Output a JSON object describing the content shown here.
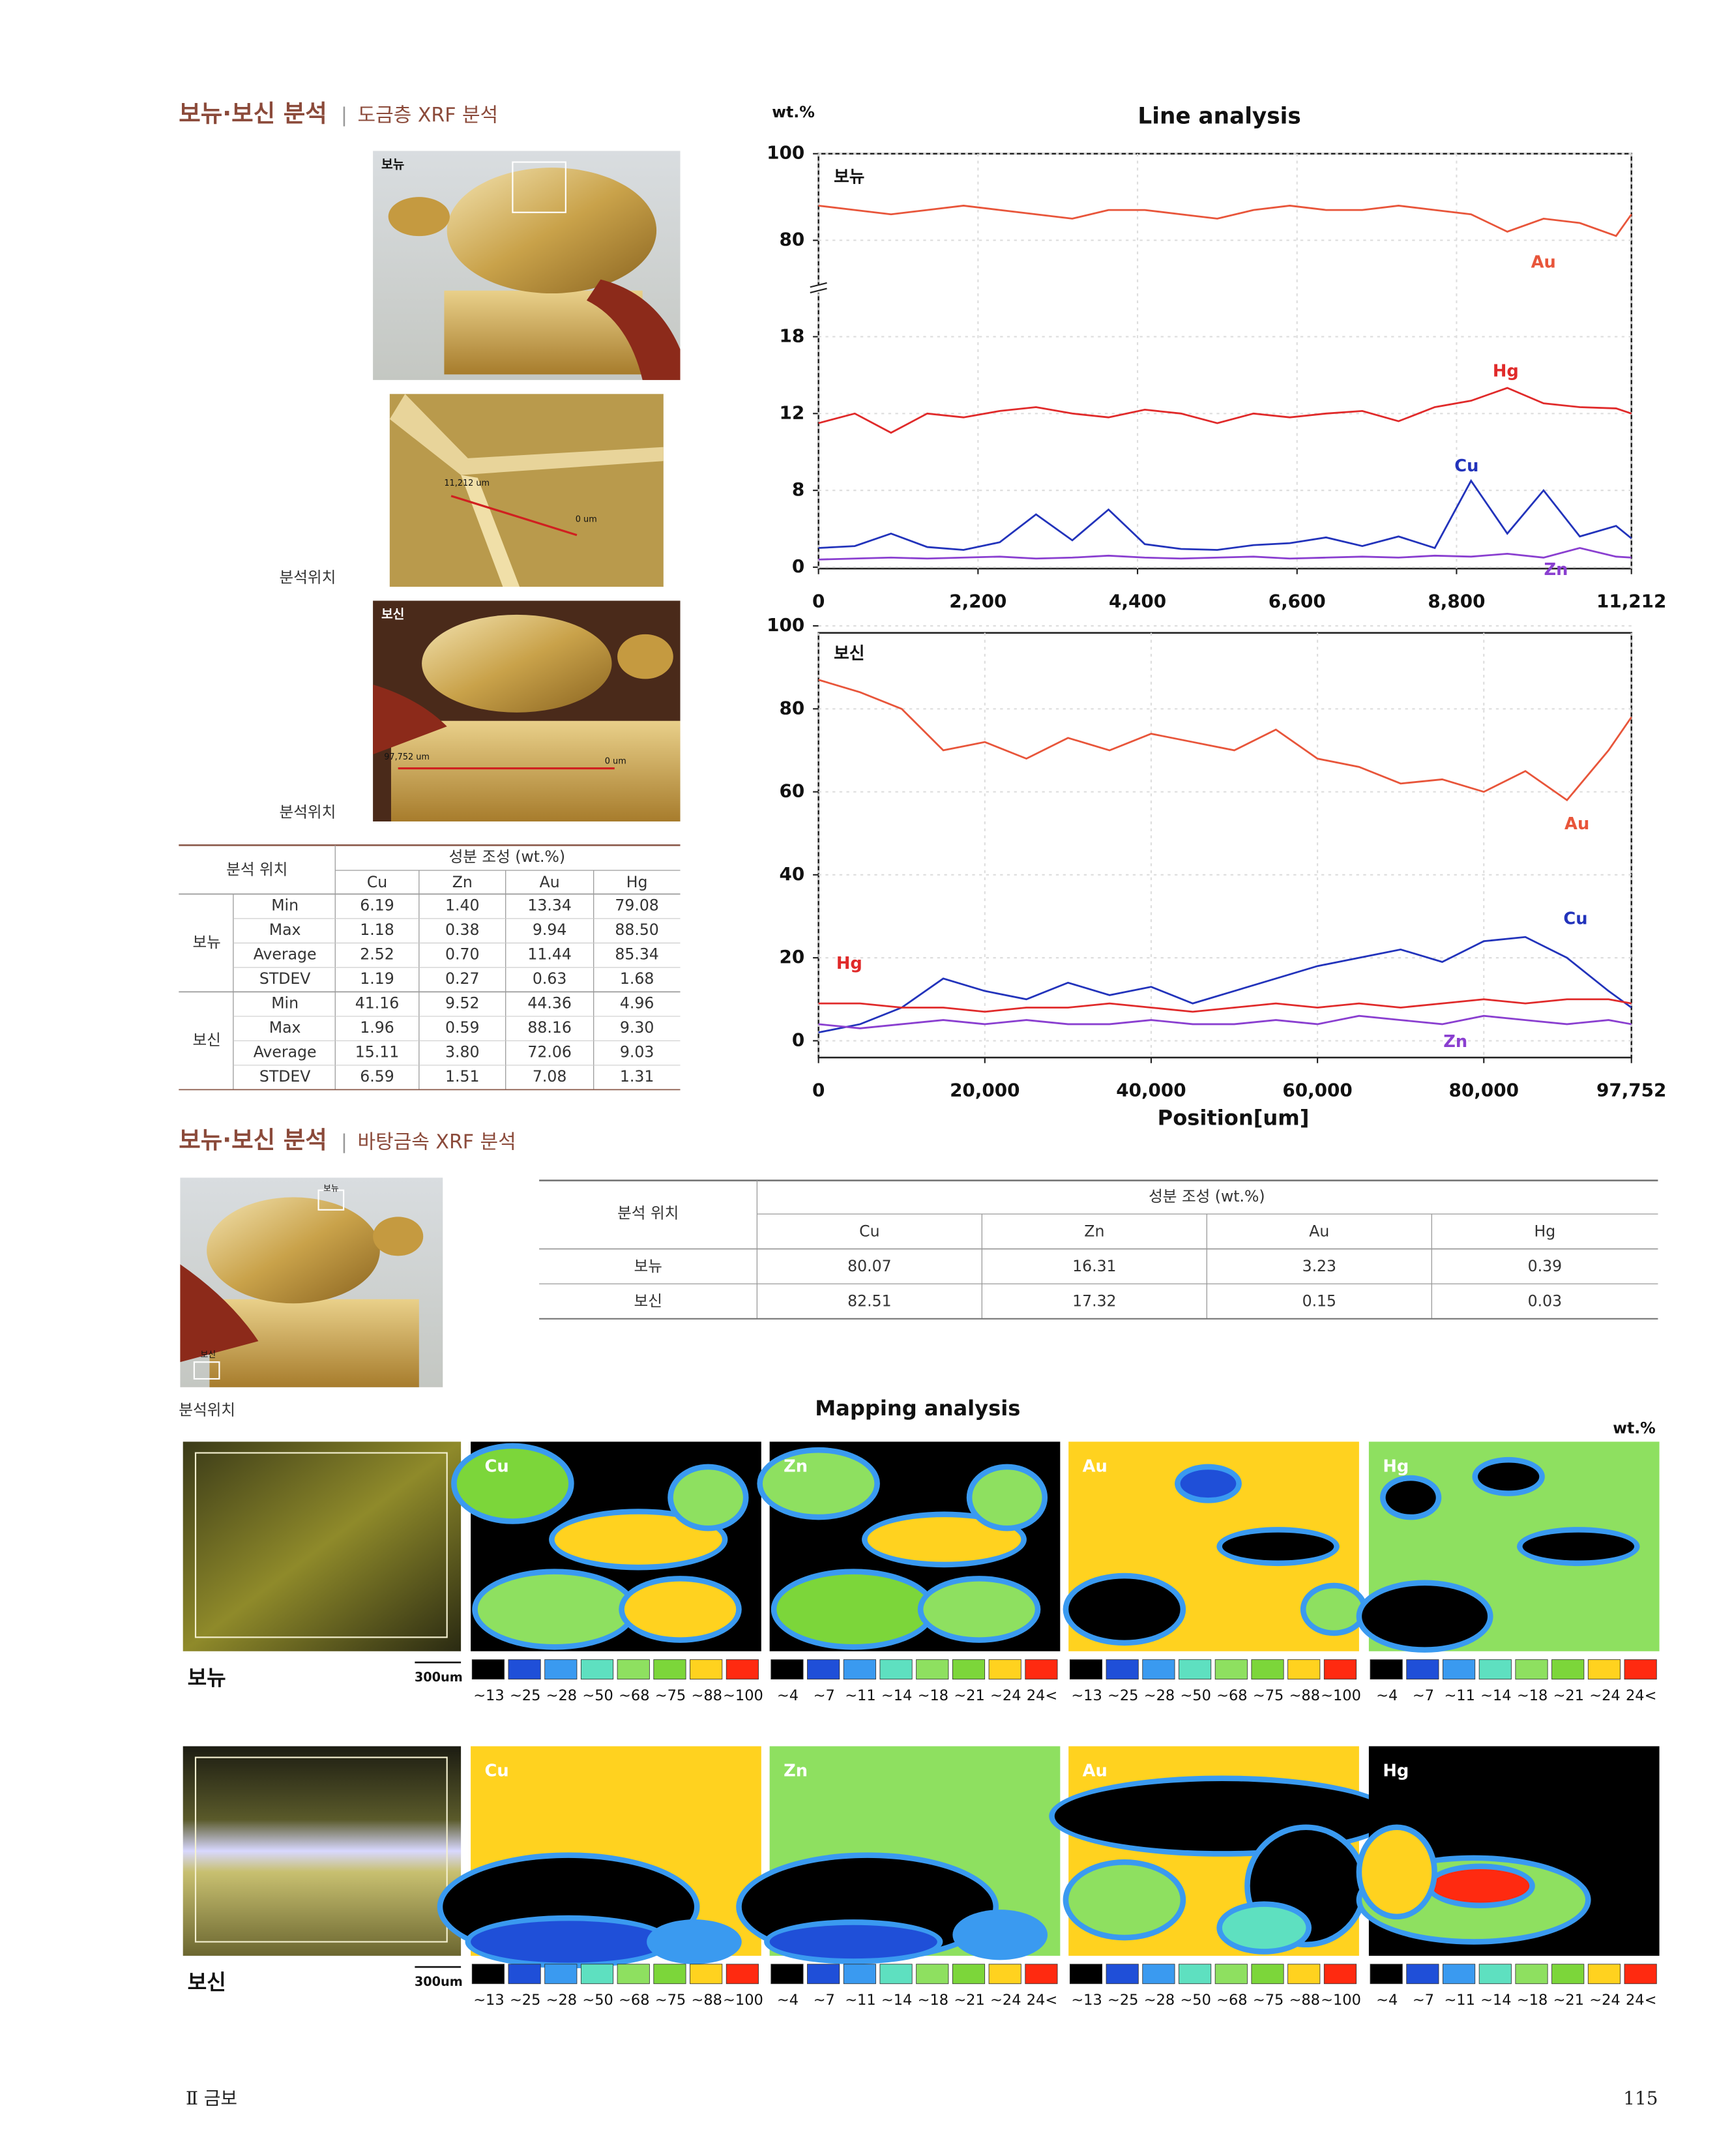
{
  "section1": {
    "title": "보뉴·보신 분석",
    "subtitle": "도금층 XRF 분석"
  },
  "photos": {
    "label1": "보뉴",
    "scale1_start": "11,212 um",
    "scale1_end": "0 um",
    "label2": "보신",
    "scale2_start": "97,752 um",
    "scale2_end": "0 um",
    "caption": "분석위치"
  },
  "table1": {
    "header_position": "분석 위치",
    "header_composition": "성분 조성 (wt.%)",
    "columns": [
      "Cu",
      "Zn",
      "Au",
      "Hg"
    ],
    "groups": [
      {
        "name": "보뉴",
        "rows": [
          [
            "Min",
            "6.19",
            "1.40",
            "13.34",
            "79.08"
          ],
          [
            "Max",
            "1.18",
            "0.38",
            "9.94",
            "88.50"
          ],
          [
            "Average",
            "2.52",
            "0.70",
            "11.44",
            "85.34"
          ],
          [
            "STDEV",
            "1.19",
            "0.27",
            "0.63",
            "1.68"
          ]
        ]
      },
      {
        "name": "보신",
        "rows": [
          [
            "Min",
            "41.16",
            "9.52",
            "44.36",
            "4.96"
          ],
          [
            "Max",
            "1.96",
            "0.59",
            "88.16",
            "9.30"
          ],
          [
            "Average",
            "15.11",
            "3.80",
            "72.06",
            "9.03"
          ],
          [
            "STDEV",
            "6.59",
            "1.51",
            "7.08",
            "1.31"
          ]
        ]
      }
    ]
  },
  "chart_data": [
    {
      "type": "line",
      "title": "Line analysis",
      "y_label": "wt.%",
      "annotation": "보뉴",
      "grid": true,
      "axis_break": true,
      "x": [
        0,
        500,
        1000,
        1500,
        2000,
        2500,
        3000,
        3500,
        4000,
        4500,
        5000,
        5500,
        6000,
        6500,
        7000,
        7500,
        8000,
        8500,
        9000,
        9500,
        10000,
        10500,
        11000,
        11212
      ],
      "xlim": [
        0,
        11212
      ],
      "xticks": [
        0,
        {
          "value": 2200,
          "label": "2,200"
        },
        {
          "value": 4400,
          "label": "4,400"
        },
        {
          "value": 6600,
          "label": "6,600"
        },
        {
          "value": 8800,
          "label": "8,800"
        },
        {
          "value": 11212,
          "label": "11,212"
        }
      ],
      "ylim": [
        0,
        100
      ],
      "yticks": [
        0,
        8,
        12,
        18,
        80,
        100
      ],
      "series": [
        {
          "name": "Au",
          "color": "#e8553a",
          "values": [
            88,
            87,
            86,
            87,
            88,
            87,
            86,
            85,
            87,
            87,
            86,
            85,
            87,
            88,
            87,
            87,
            88,
            87,
            86,
            82,
            85,
            84,
            81,
            86
          ]
        },
        {
          "name": "Hg",
          "color": "#e02a2a",
          "values": [
            11.5,
            12,
            11,
            12,
            11.8,
            12.2,
            12.5,
            12,
            11.8,
            12.3,
            12,
            11.5,
            12,
            11.8,
            12,
            12.2,
            11.6,
            12.5,
            13,
            14,
            12.8,
            12.5,
            12.4,
            12
          ]
        },
        {
          "name": "Cu",
          "color": "#2233bb",
          "values": [
            2,
            2.2,
            3.5,
            2.1,
            1.8,
            2.6,
            5.5,
            2.8,
            6,
            2.4,
            1.9,
            1.8,
            2.3,
            2.5,
            3.1,
            2.2,
            3.2,
            2,
            8.5,
            3.5,
            8,
            3.2,
            4.3,
            3
          ]
        },
        {
          "name": "Zn",
          "color": "#8a3fd0",
          "values": [
            0.8,
            0.9,
            1,
            0.9,
            1,
            1.1,
            0.9,
            1,
            1.2,
            1,
            0.9,
            1,
            1.1,
            0.9,
            1,
            1.1,
            1,
            1.2,
            1.1,
            1.4,
            1,
            2,
            1.1,
            1
          ]
        }
      ]
    },
    {
      "type": "line",
      "x_label": "Position[um]",
      "annotation": "보신",
      "grid": true,
      "x": [
        0,
        5000,
        10000,
        15000,
        20000,
        25000,
        30000,
        35000,
        40000,
        45000,
        50000,
        55000,
        60000,
        65000,
        70000,
        75000,
        80000,
        85000,
        90000,
        95000,
        97752
      ],
      "xlim": [
        0,
        97752
      ],
      "xticks": [
        0,
        {
          "value": 20000,
          "label": "20,000"
        },
        {
          "value": 40000,
          "label": "40,000"
        },
        {
          "value": 60000,
          "label": "60,000"
        },
        {
          "value": 80000,
          "label": "80,000"
        },
        {
          "value": 97752,
          "label": "97,752"
        }
      ],
      "ylim": [
        0,
        100
      ],
      "yticks": [
        0,
        20,
        40,
        60,
        80,
        100
      ],
      "series": [
        {
          "name": "Au",
          "color": "#e8553a",
          "values": [
            87,
            84,
            80,
            70,
            72,
            68,
            73,
            70,
            74,
            72,
            70,
            75,
            68,
            66,
            62,
            63,
            60,
            65,
            58,
            70,
            78
          ]
        },
        {
          "name": "Cu",
          "color": "#2233bb",
          "values": [
            2,
            4,
            8,
            15,
            12,
            10,
            14,
            11,
            13,
            9,
            12,
            15,
            18,
            20,
            22,
            19,
            24,
            25,
            20,
            12,
            8
          ]
        },
        {
          "name": "Hg",
          "color": "#e02a2a",
          "values": [
            9,
            9,
            8,
            8,
            7,
            8,
            8,
            9,
            8,
            7,
            8,
            9,
            8,
            9,
            8,
            9,
            10,
            9,
            10,
            10,
            9
          ]
        },
        {
          "name": "Zn",
          "color": "#8a3fd0",
          "values": [
            4,
            3,
            4,
            5,
            4,
            5,
            4,
            4,
            5,
            4,
            4,
            5,
            4,
            6,
            5,
            4,
            6,
            5,
            4,
            5,
            4
          ]
        }
      ]
    }
  ],
  "section2": {
    "title": "보뉴·보신 분석",
    "subtitle": "바탕금속 XRF 분석"
  },
  "photo2": {
    "label1": "보뉴",
    "label2": "보신",
    "caption": "분석위치"
  },
  "table2": {
    "header_position": "분석 위치",
    "header_composition": "성분 조성 (wt.%)",
    "columns": [
      "Cu",
      "Zn",
      "Au",
      "Hg"
    ],
    "rows": [
      [
        "보뉴",
        "80.07",
        "16.31",
        "3.23",
        "0.39"
      ],
      [
        "보신",
        "82.51",
        "17.32",
        "0.15",
        "0.03"
      ]
    ]
  },
  "mapping": {
    "title": "Mapping analysis",
    "unit": "wt.%",
    "elements": [
      "Cu",
      "Zn",
      "Au",
      "Hg"
    ],
    "samples": [
      "보뉴",
      "보신"
    ],
    "scale_bar": "300um",
    "legend_colors": [
      "#000000",
      "#1f4fd8",
      "#3a9af0",
      "#5ee0c0",
      "#8ee060",
      "#7cd63a",
      "#ffd21f",
      "#ff2a10"
    ],
    "legends": [
      [
        "~13",
        "~25",
        "~28",
        "~50",
        "~68",
        "~75",
        "~88",
        "~100"
      ],
      [
        "~4",
        "~7",
        "~11",
        "~14",
        "~18",
        "~21",
        "~24",
        "24<"
      ],
      [
        "~13",
        "~25",
        "~28",
        "~50",
        "~68",
        "~75",
        "~88",
        "~100"
      ],
      [
        "~4",
        "~7",
        "~11",
        "~14",
        "~18",
        "~21",
        "~24",
        "24<"
      ]
    ]
  },
  "footer": {
    "chapter": "Ⅱ 금보",
    "page": "115"
  }
}
